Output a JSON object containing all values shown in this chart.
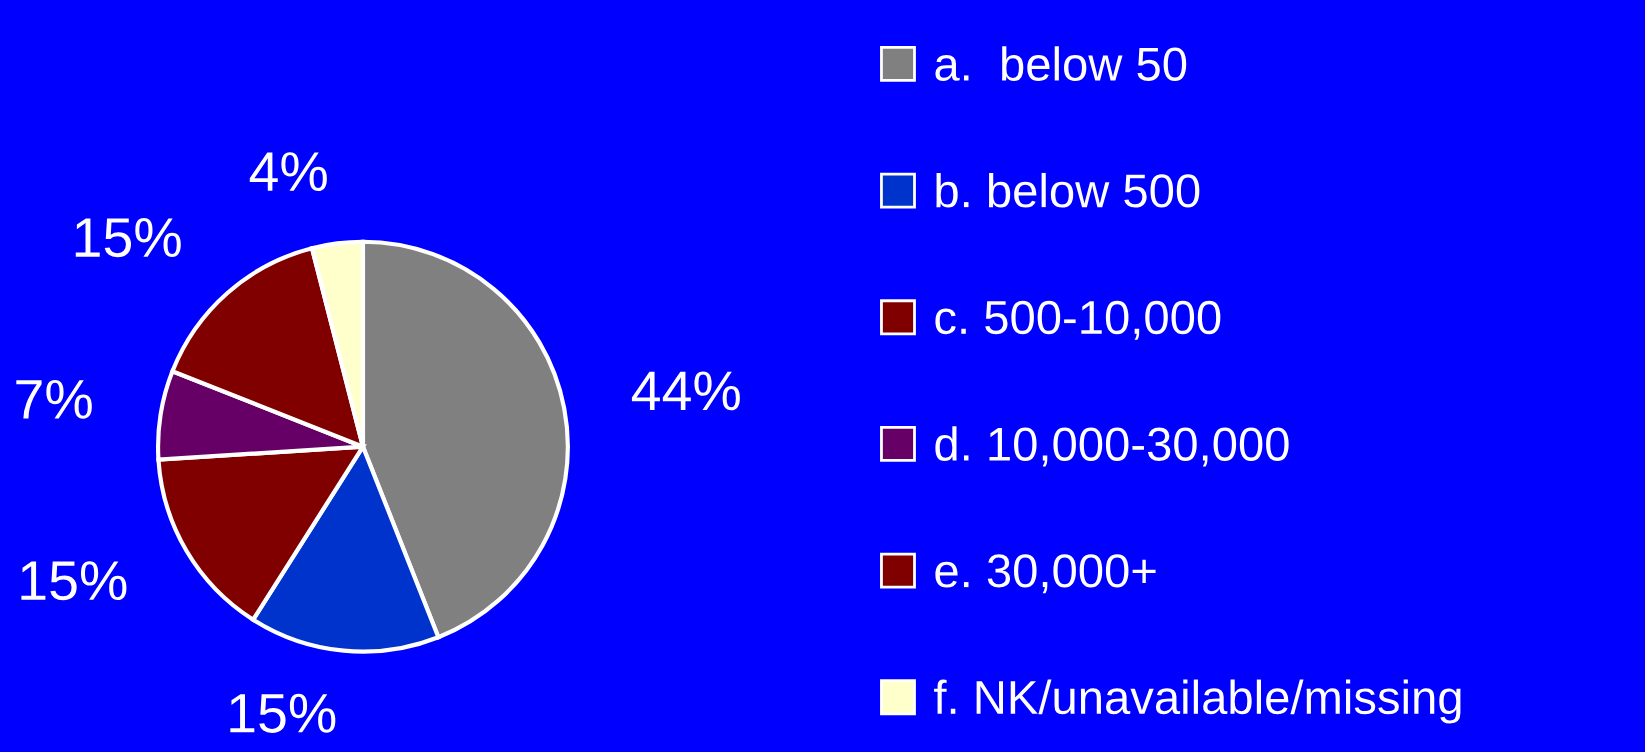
{
  "chart_data": {
    "type": "pie",
    "categories": [
      "a.  below 50",
      "b. below 500",
      "c. 500-10,000",
      "d. 10,000-30,000",
      "e. 30,000+",
      "f. NK/unavailable/missing"
    ],
    "values": [
      44,
      15,
      15,
      7,
      15,
      4
    ],
    "value_labels": [
      "44%",
      "15%",
      "15%",
      "7%",
      "15%",
      "4%"
    ],
    "colors": [
      "#808080",
      "#0033cc",
      "#800000",
      "#660066",
      "#800000",
      "#ffffcc"
    ],
    "legend": "right"
  }
}
